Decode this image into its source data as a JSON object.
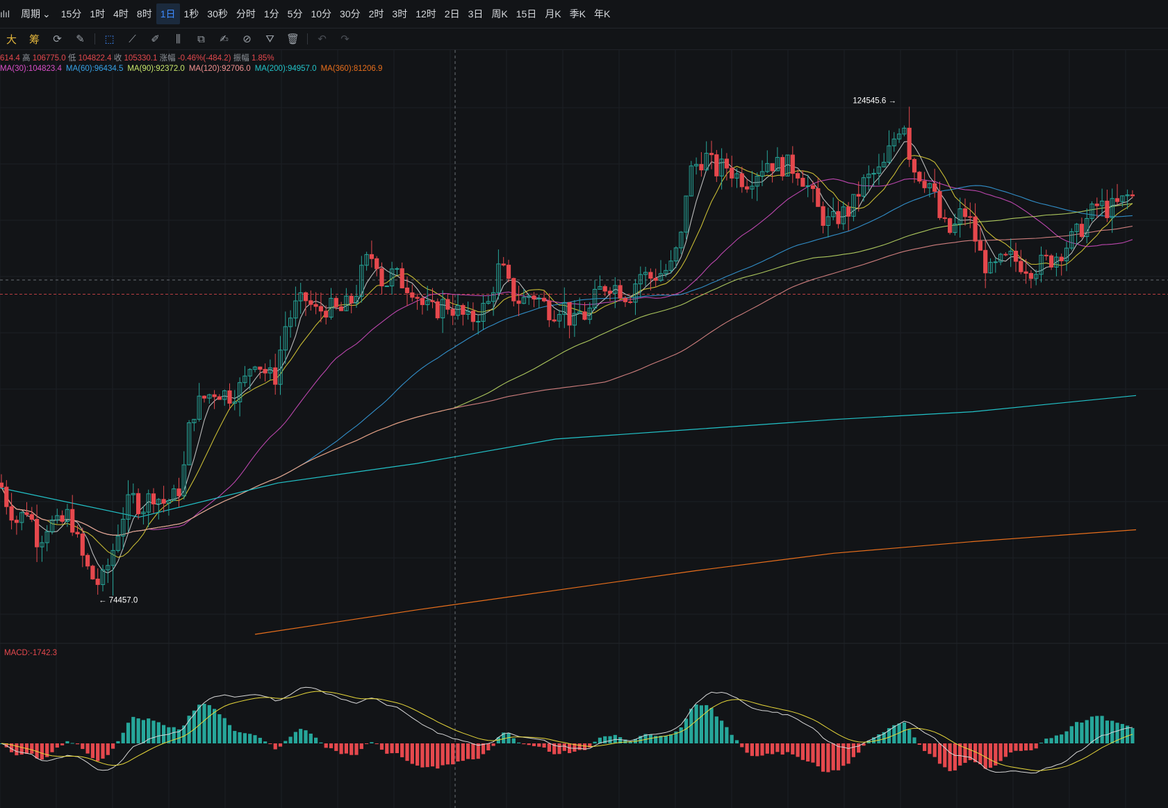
{
  "toolbar": {
    "period_label": "周期",
    "timeframes": [
      "15分",
      "1时",
      "4时",
      "8时",
      "1日",
      "1秒",
      "30秒",
      "分时",
      "1分",
      "5分",
      "10分",
      "30分",
      "2时",
      "3时",
      "12时",
      "2日",
      "3日",
      "周K",
      "15日",
      "月K",
      "季K",
      "年K"
    ],
    "active": "1日"
  },
  "drawbar": {
    "tools": [
      {
        "name": "big-text-icon",
        "glyph": "大"
      },
      {
        "name": "chip-distribution-icon",
        "glyph": "筹"
      },
      {
        "name": "indicator-icon",
        "glyph": "⟳"
      },
      {
        "name": "draw-settings-icon",
        "glyph": "✎"
      },
      {
        "name": "select-cursor-icon",
        "glyph": "⬚"
      },
      {
        "name": "ruler-icon",
        "glyph": "⟋"
      },
      {
        "name": "pen-icon",
        "glyph": "✐"
      },
      {
        "name": "candle-pattern-icon",
        "glyph": "⫼"
      },
      {
        "name": "copy-icon",
        "glyph": "⧉"
      },
      {
        "name": "note-icon",
        "glyph": "✍"
      },
      {
        "name": "magnet-icon",
        "glyph": "⊘"
      },
      {
        "name": "filter-icon",
        "glyph": "⛛"
      },
      {
        "name": "trash-icon",
        "glyph": "🗑"
      },
      {
        "name": "undo-icon",
        "glyph": "↶"
      },
      {
        "name": "redo-icon",
        "glyph": "↷"
      }
    ]
  },
  "ohlc": {
    "open_tail": "614.4",
    "high_label": "高",
    "high": "106775.0",
    "low_label": "低",
    "low": "104822.4",
    "close_label": "收",
    "close": "105330.1",
    "change_label": "涨幅",
    "change": "-0.46%(-484.2)",
    "amp_label": "振幅",
    "amp": "1.85%"
  },
  "ma_labels": [
    {
      "text": "MA(30):104823.4",
      "color": "#d94fc8"
    },
    {
      "text": "MA(60):96434.5",
      "color": "#37a3e8"
    },
    {
      "text": "MA(90):92372.0",
      "color": "#c8e66a"
    },
    {
      "text": "MA(120):92706.0",
      "color": "#f0908f"
    },
    {
      "text": "MA(200):94957.0",
      "color": "#22c3c9"
    },
    {
      "text": "MA(360):81206.9",
      "color": "#e96f1c"
    }
  ],
  "annotations": {
    "high_marker": "124545.6 →",
    "low_marker": "← 74457.0"
  },
  "macd_label": "MACD:-1742.3",
  "chart_data": {
    "type": "candlestick",
    "highest": 124545.6,
    "lowest": 74457.0,
    "price_range": [
      70000,
      128000
    ],
    "moving_averages": [
      "MA(30)",
      "MA(60)",
      "MA(90)",
      "MA(120)",
      "MA(200)",
      "MA(360)"
    ],
    "last": {
      "high": 106775.0,
      "low": 104822.4,
      "close": 105330.1,
      "change_pct": -0.46,
      "change": -484.2,
      "amplitude_pct": 1.85
    },
    "ma_last": {
      "MA(30)": 104823.4,
      "MA(60)": 96434.5,
      "MA(90)": 92372.0,
      "MA(120)": 92706.0,
      "MA(200)": 94957.0,
      "MA(360)": 81206.9
    },
    "macd": {
      "value": -1742.3
    },
    "colors": {
      "up": "#26a69a",
      "down": "#e5484d",
      "background": "#121417"
    }
  }
}
